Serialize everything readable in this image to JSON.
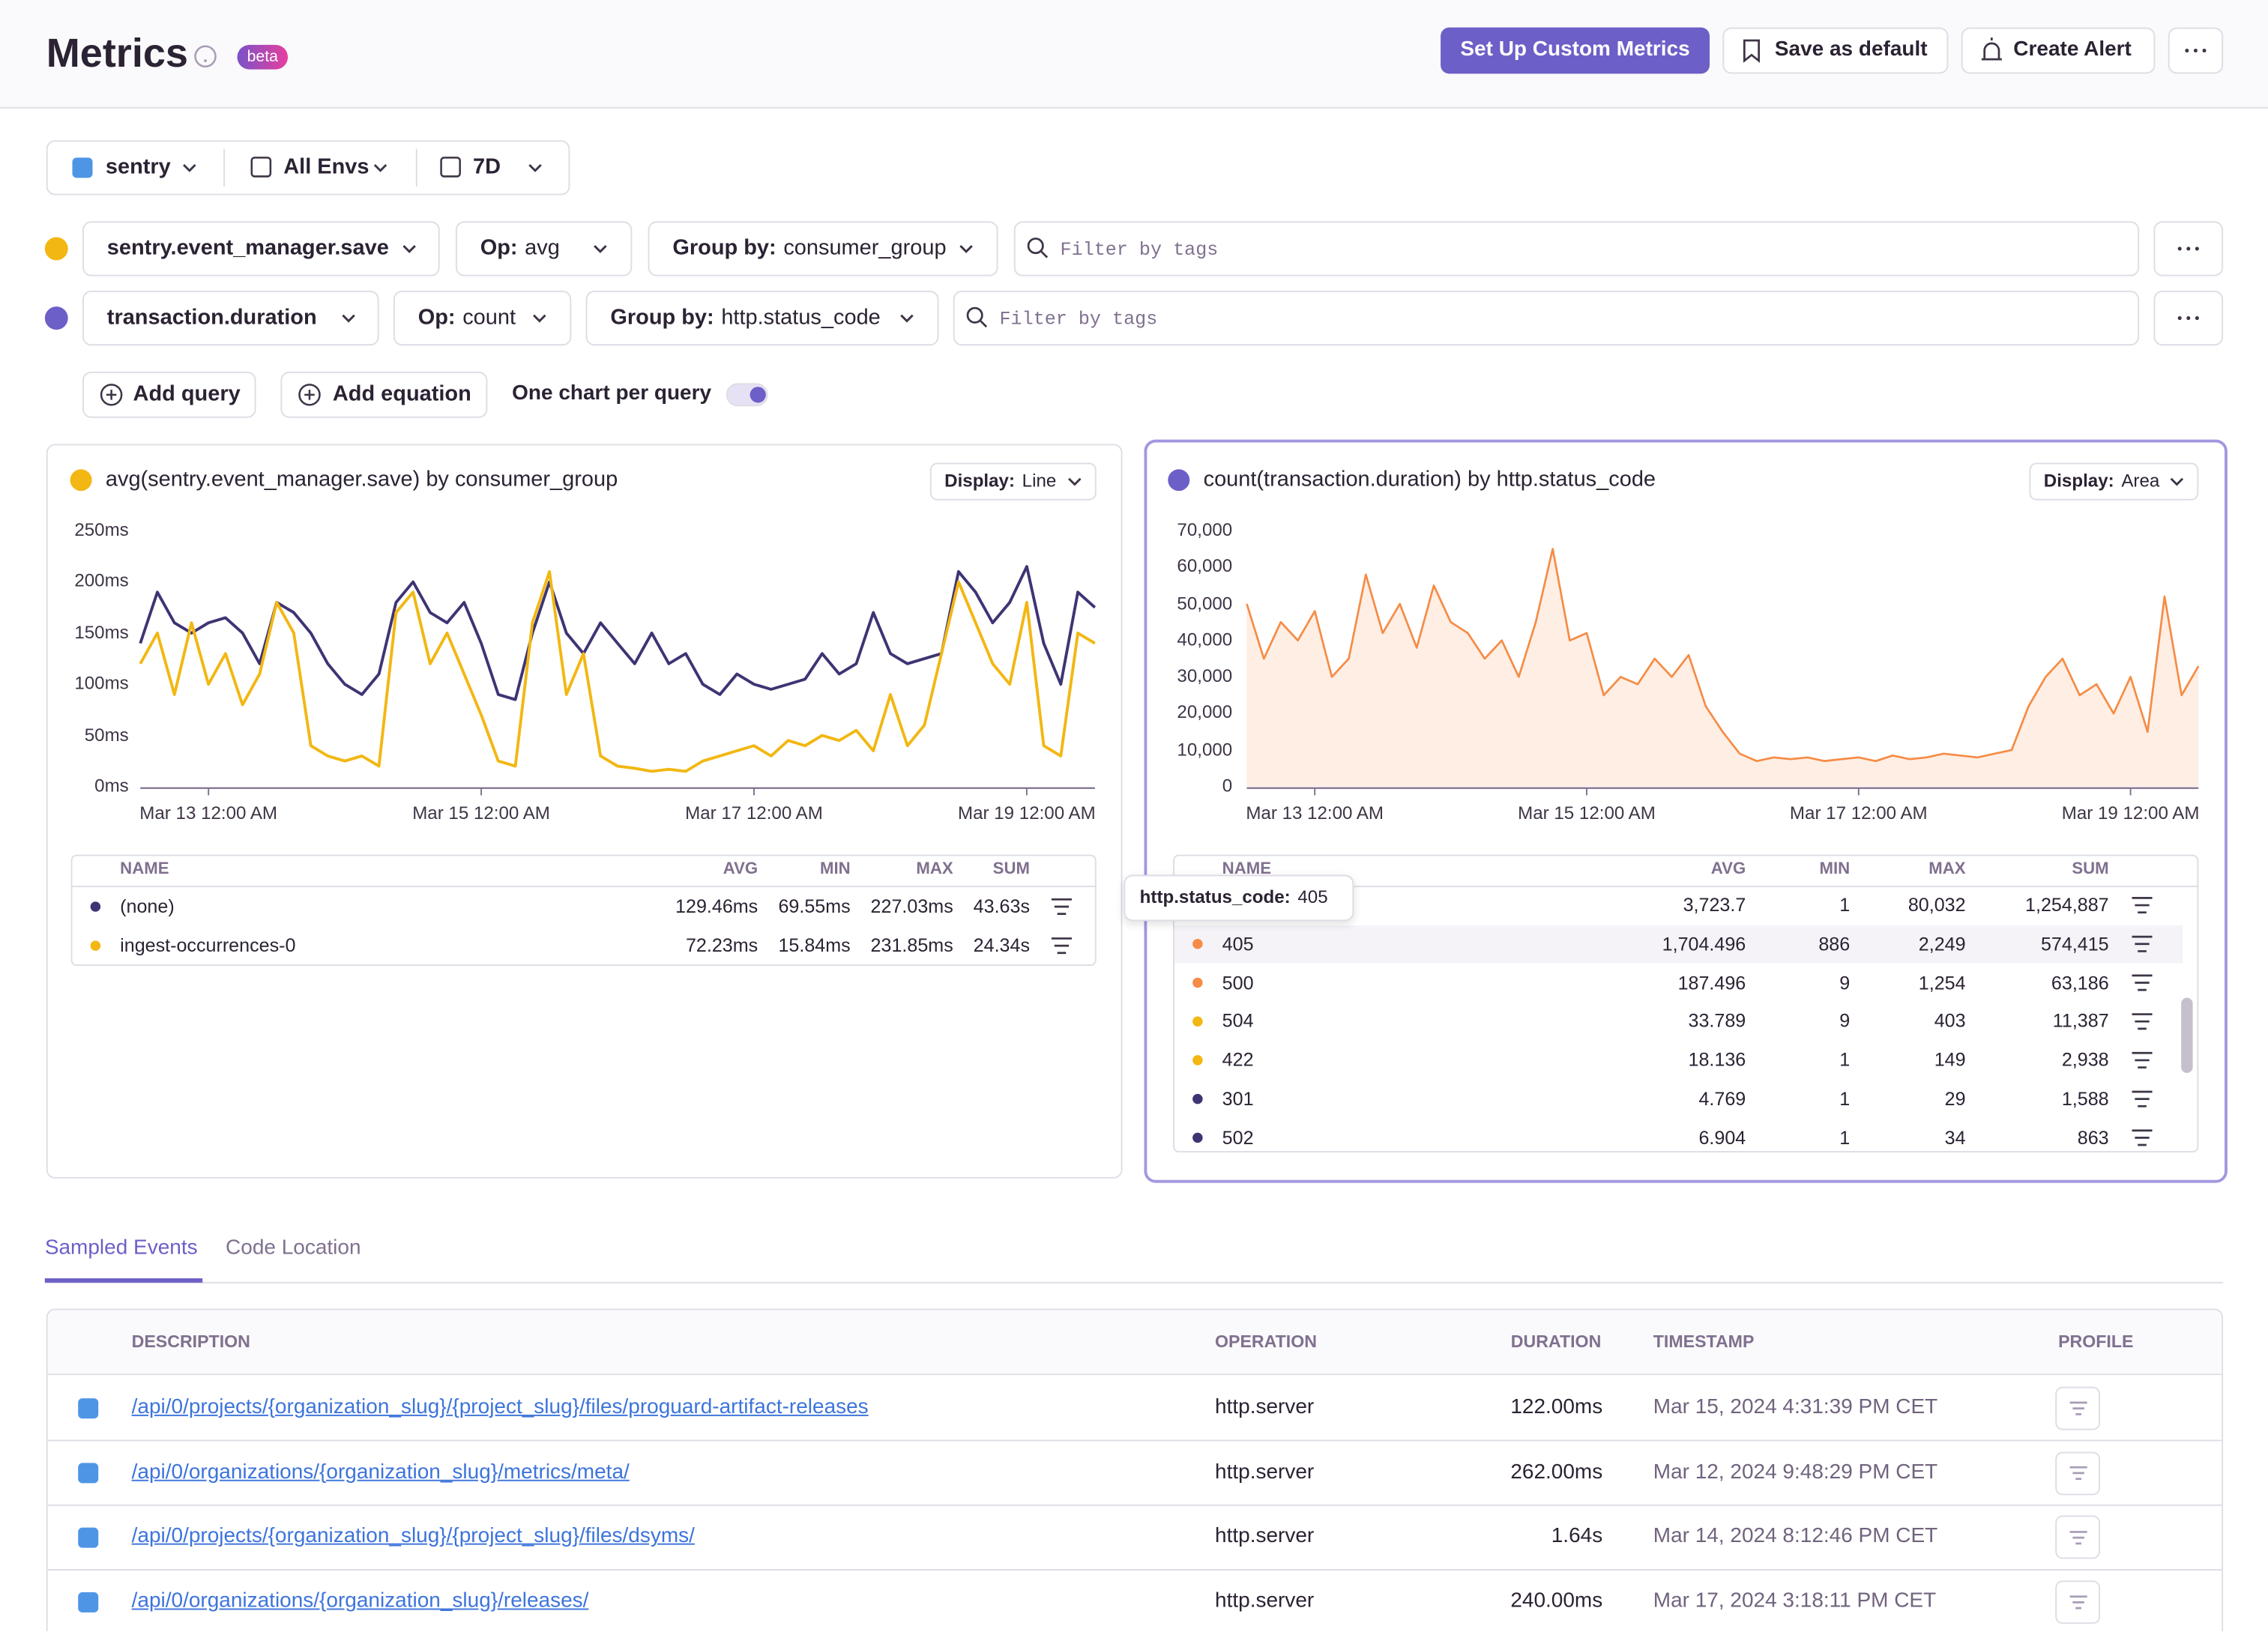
{
  "header": {
    "title": "Metrics",
    "badge": "beta",
    "primary_button": "Set Up Custom Metrics",
    "save_button": "Save as default",
    "alert_button": "Create Alert"
  },
  "page_filters": {
    "project": "sentry",
    "environment": "All Envs",
    "period": "7D"
  },
  "queries": [
    {
      "letter": "a",
      "metric": "sentry.event_manager.save",
      "op_label": "Op:",
      "op": "avg",
      "group_label": "Group by:",
      "group": "consumer_group",
      "filter_placeholder": "Filter by tags"
    },
    {
      "letter": "b",
      "metric": "transaction.duration",
      "op_label": "Op:",
      "op": "count",
      "group_label": "Group by:",
      "group": "http.status_code",
      "filter_placeholder": "Filter by tags"
    }
  ],
  "query_actions": {
    "add_query": "Add query",
    "add_equation": "Add equation",
    "toggle_label": "One chart per query"
  },
  "chart_data": [
    {
      "type": "line",
      "letter": "a",
      "title": "avg(sentry.event_manager.save) by consumer_group",
      "display_label": "Display:",
      "display": "Line",
      "x": [
        "Mar 12 12:00 PM",
        "Mar 12 3:00 PM",
        "Mar 12 6:00 PM",
        "Mar 12 9:00 PM",
        "Mar 13 12:00 AM",
        "Mar 13 3:00 AM",
        "Mar 13 6:00 AM",
        "Mar 13 9:00 AM",
        "Mar 13 12:00 PM",
        "Mar 13 3:00 PM",
        "Mar 13 6:00 PM",
        "Mar 13 9:00 PM",
        "Mar 14 12:00 AM",
        "Mar 14 3:00 AM",
        "Mar 14 6:00 AM",
        "Mar 14 9:00 AM",
        "Mar 14 12:00 PM",
        "Mar 14 3:00 PM",
        "Mar 14 6:00 PM",
        "Mar 14 9:00 PM",
        "Mar 15 12:00 AM",
        "Mar 15 3:00 AM",
        "Mar 15 6:00 AM",
        "Mar 15 9:00 AM",
        "Mar 15 12:00 PM",
        "Mar 15 3:00 PM",
        "Mar 15 6:00 PM",
        "Mar 15 9:00 PM",
        "Mar 16 12:00 AM",
        "Mar 16 3:00 AM",
        "Mar 16 6:00 AM",
        "Mar 16 9:00 AM",
        "Mar 16 12:00 PM",
        "Mar 16 3:00 PM",
        "Mar 16 6:00 PM",
        "Mar 16 9:00 PM",
        "Mar 17 12:00 AM",
        "Mar 17 3:00 AM",
        "Mar 17 6:00 AM",
        "Mar 17 9:00 AM",
        "Mar 17 12:00 PM",
        "Mar 17 3:00 PM",
        "Mar 17 6:00 PM",
        "Mar 17 9:00 PM",
        "Mar 18 12:00 AM",
        "Mar 18 3:00 AM",
        "Mar 18 6:00 AM",
        "Mar 18 9:00 AM",
        "Mar 18 12:00 PM",
        "Mar 18 3:00 PM",
        "Mar 18 6:00 PM",
        "Mar 18 9:00 PM",
        "Mar 19 12:00 AM",
        "Mar 19 3:00 AM",
        "Mar 19 6:00 AM",
        "Mar 19 9:00 AM",
        "Mar 19 12:00 PM"
      ],
      "xlim": [
        "Mar 12 12:00 PM",
        "Mar 19 12:00 PM"
      ],
      "xticks": [
        "Mar 13 12:00 AM",
        "Mar 15 12:00 AM",
        "Mar 17 12:00 AM",
        "Mar 19 12:00 AM"
      ],
      "ylim": [
        0,
        250
      ],
      "yticks": [
        {
          "value": 0,
          "label": "0ms"
        },
        {
          "value": 50,
          "label": "50ms"
        },
        {
          "value": 100,
          "label": "100ms"
        },
        {
          "value": 150,
          "label": "150ms"
        },
        {
          "value": 200,
          "label": "200ms"
        },
        {
          "value": 250,
          "label": "250ms"
        }
      ],
      "grid": false,
      "series": [
        {
          "name": "(none)",
          "color": "#3e3474",
          "values": [
            140,
            190,
            160,
            150,
            160,
            165,
            150,
            120,
            180,
            170,
            150,
            120,
            100,
            90,
            110,
            180,
            200,
            170,
            160,
            180,
            140,
            90,
            85,
            150,
            200,
            150,
            130,
            160,
            140,
            120,
            150,
            120,
            130,
            100,
            90,
            110,
            100,
            95,
            100,
            105,
            130,
            110,
            120,
            170,
            130,
            120,
            125,
            130,
            210,
            190,
            160,
            180,
            215,
            140,
            100,
            190,
            175
          ]
        },
        {
          "name": "ingest-occurrences-0",
          "color": "#f2b712",
          "values": [
            120,
            150,
            90,
            160,
            100,
            130,
            80,
            110,
            180,
            150,
            40,
            30,
            25,
            30,
            20,
            170,
            190,
            120,
            150,
            110,
            70,
            25,
            20,
            160,
            210,
            90,
            130,
            30,
            20,
            18,
            15,
            17,
            15,
            25,
            30,
            35,
            40,
            30,
            45,
            40,
            50,
            45,
            55,
            35,
            90,
            40,
            60,
            130,
            200,
            160,
            120,
            100,
            180,
            40,
            30,
            150,
            140
          ]
        }
      ],
      "table": {
        "columns": [
          "NAME",
          "AVG",
          "MIN",
          "MAX",
          "SUM"
        ],
        "rows": [
          [
            "129.46ms",
            "69.55ms",
            "227.03ms",
            "43.63s"
          ],
          [
            "72.23ms",
            "15.84ms",
            "231.85ms",
            "24.34s"
          ]
        ]
      }
    },
    {
      "type": "area",
      "letter": "b",
      "title": "count(transaction.duration) by http.status_code",
      "display_label": "Display:",
      "display": "Area",
      "x": [
        "Mar 12 12:00 PM",
        "Mar 12 3:00 PM",
        "Mar 12 6:00 PM",
        "Mar 12 9:00 PM",
        "Mar 13 12:00 AM",
        "Mar 13 3:00 AM",
        "Mar 13 6:00 AM",
        "Mar 13 9:00 AM",
        "Mar 13 12:00 PM",
        "Mar 13 3:00 PM",
        "Mar 13 6:00 PM",
        "Mar 13 9:00 PM",
        "Mar 14 12:00 AM",
        "Mar 14 3:00 AM",
        "Mar 14 6:00 AM",
        "Mar 14 9:00 AM",
        "Mar 14 12:00 PM",
        "Mar 14 3:00 PM",
        "Mar 14 6:00 PM",
        "Mar 14 9:00 PM",
        "Mar 15 12:00 AM",
        "Mar 15 3:00 AM",
        "Mar 15 6:00 AM",
        "Mar 15 9:00 AM",
        "Mar 15 12:00 PM",
        "Mar 15 3:00 PM",
        "Mar 15 6:00 PM",
        "Mar 15 9:00 PM",
        "Mar 16 12:00 AM",
        "Mar 16 3:00 AM",
        "Mar 16 6:00 AM",
        "Mar 16 9:00 AM",
        "Mar 16 12:00 PM",
        "Mar 16 3:00 PM",
        "Mar 16 6:00 PM",
        "Mar 16 9:00 PM",
        "Mar 17 12:00 AM",
        "Mar 17 3:00 AM",
        "Mar 17 6:00 AM",
        "Mar 17 9:00 AM",
        "Mar 17 12:00 PM",
        "Mar 17 3:00 PM",
        "Mar 17 6:00 PM",
        "Mar 17 9:00 PM",
        "Mar 18 12:00 AM",
        "Mar 18 3:00 AM",
        "Mar 18 6:00 AM",
        "Mar 18 9:00 AM",
        "Mar 18 12:00 PM",
        "Mar 18 3:00 PM",
        "Mar 18 6:00 PM",
        "Mar 18 9:00 PM",
        "Mar 19 12:00 AM",
        "Mar 19 3:00 AM",
        "Mar 19 6:00 AM",
        "Mar 19 9:00 AM",
        "Mar 19 12:00 PM"
      ],
      "xlim": [
        "Mar 12 12:00 PM",
        "Mar 19 12:00 PM"
      ],
      "xticks": [
        "Mar 13 12:00 AM",
        "Mar 15 12:00 AM",
        "Mar 17 12:00 AM",
        "Mar 19 12:00 AM"
      ],
      "ylim": [
        0,
        70000
      ],
      "yticks": [
        0,
        {
          "value": 10000,
          "label": "10,000"
        },
        {
          "value": 20000,
          "label": "20,000"
        },
        {
          "value": 30000,
          "label": "30,000"
        },
        {
          "value": 40000,
          "label": "40,000"
        },
        {
          "value": 50000,
          "label": "50,000"
        },
        {
          "value": 60000,
          "label": "60,000"
        },
        {
          "value": 70000,
          "label": "70,000"
        }
      ],
      "grid": false,
      "series": [
        {
          "color": "#f58c46",
          "values": [
            50000,
            35000,
            45000,
            40000,
            48000,
            30000,
            35000,
            58000,
            42000,
            50000,
            38000,
            55000,
            45000,
            42000,
            35000,
            40000,
            30000,
            45000,
            65000,
            40000,
            42000,
            25000,
            30000,
            28000,
            35000,
            30000,
            36000,
            22000,
            15000,
            9000,
            7000,
            8000,
            7500,
            8000,
            7000,
            7500,
            8000,
            7000,
            8500,
            7500,
            8000,
            9000,
            8500,
            8000,
            9000,
            10000,
            22000,
            30000,
            35000,
            25000,
            28000,
            20000,
            30000,
            15000,
            52000,
            25000,
            33000
          ]
        }
      ],
      "table": {
        "columns": [
          "NAME",
          "AVG",
          "MIN",
          "MAX",
          "SUM"
        ],
        "rows": [
          {
            "name": null,
            "color": "#f58c46",
            "stats": [
              "3,723.7",
              "1",
              "80,032",
              "1,254,887"
            ]
          },
          {
            "name": "405",
            "color": "#f58c46",
            "stats": [
              "1,704.496",
              "886",
              "2,249",
              "574,415"
            ]
          },
          {
            "name": "500",
            "color": "#f58c46",
            "stats": [
              "187.496",
              "9",
              "1,254",
              "63,186"
            ]
          },
          {
            "name": "504",
            "color": "#f2b712",
            "stats": [
              "33.789",
              "9",
              "403",
              "11,387"
            ]
          },
          {
            "name": "422",
            "color": "#f2b712",
            "stats": [
              "18.136",
              "1",
              "149",
              "2,938"
            ]
          },
          {
            "name": "301",
            "color": "#3e3474",
            "stats": [
              "4.769",
              "1",
              "29",
              "1,588"
            ]
          },
          {
            "name": "502",
            "color": "#3e3474",
            "stats": [
              "6.904",
              "1",
              "34",
              "863"
            ]
          }
        ]
      }
    }
  ],
  "tooltip": {
    "label": "http.status_code:",
    "value": "405"
  },
  "tabs": [
    "Sampled Events",
    "Code Location"
  ],
  "active_tab": 0,
  "events_table": {
    "columns": [
      "DESCRIPTION",
      "OPERATION",
      "DURATION",
      "TIMESTAMP",
      "PROFILE"
    ],
    "rows": [
      [
        "/api/0/projects/{organization_slug}/{project_slug}/files/proguard-artifact-releases",
        "http.server",
        "122.00ms",
        "Mar 15, 2024 4:31:39 PM CET"
      ],
      [
        "/api/0/organizations/{organization_slug}/metrics/meta/",
        "http.server",
        "262.00ms",
        "Mar 12, 2024 9:48:29 PM CET"
      ],
      [
        "/api/0/projects/{organization_slug}/{project_slug}/files/dsyms/",
        "http.server",
        "1.64s",
        "Mar 14, 2024 8:12:46 PM CET"
      ],
      [
        "/api/0/organizations/{organization_slug}/releases/",
        "http.server",
        "240.00ms",
        "Mar 17, 2024 3:18:11 PM CET"
      ]
    ]
  }
}
